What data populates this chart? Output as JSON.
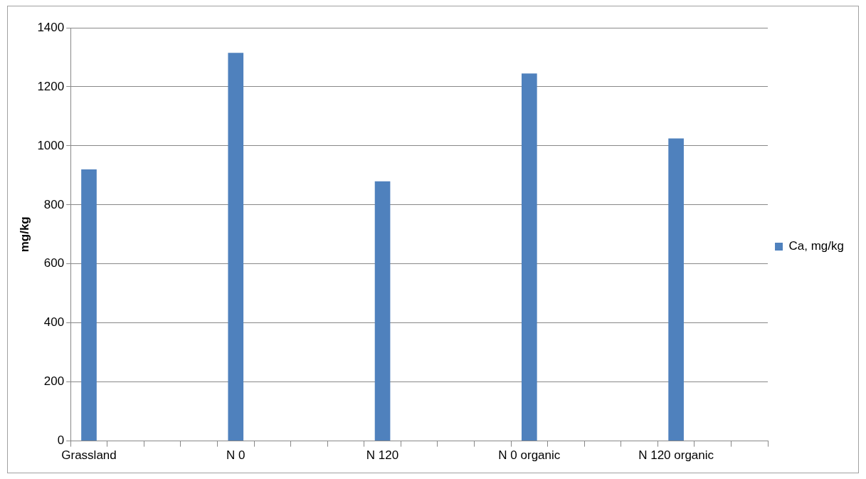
{
  "chart_data": {
    "type": "bar",
    "ylabel": "mg/kg",
    "categories": [
      "Grassland",
      null,
      null,
      null,
      "N 0",
      null,
      null,
      null,
      "N 120",
      null,
      null,
      null,
      "N 0 organic",
      null,
      null,
      null,
      "N 120 organic",
      null,
      null
    ],
    "series": [
      {
        "name": "Ca, mg/kg",
        "color": "#4f81bd",
        "values": [
          920,
          null,
          null,
          null,
          1315,
          null,
          null,
          null,
          880,
          null,
          null,
          null,
          1245,
          null,
          null,
          null,
          1025,
          null,
          null
        ]
      }
    ],
    "ylim": [
      0,
      1400
    ],
    "yticks": [
      0,
      200,
      400,
      600,
      800,
      1000,
      1200,
      1400
    ],
    "grid": "y",
    "legend": "right"
  }
}
